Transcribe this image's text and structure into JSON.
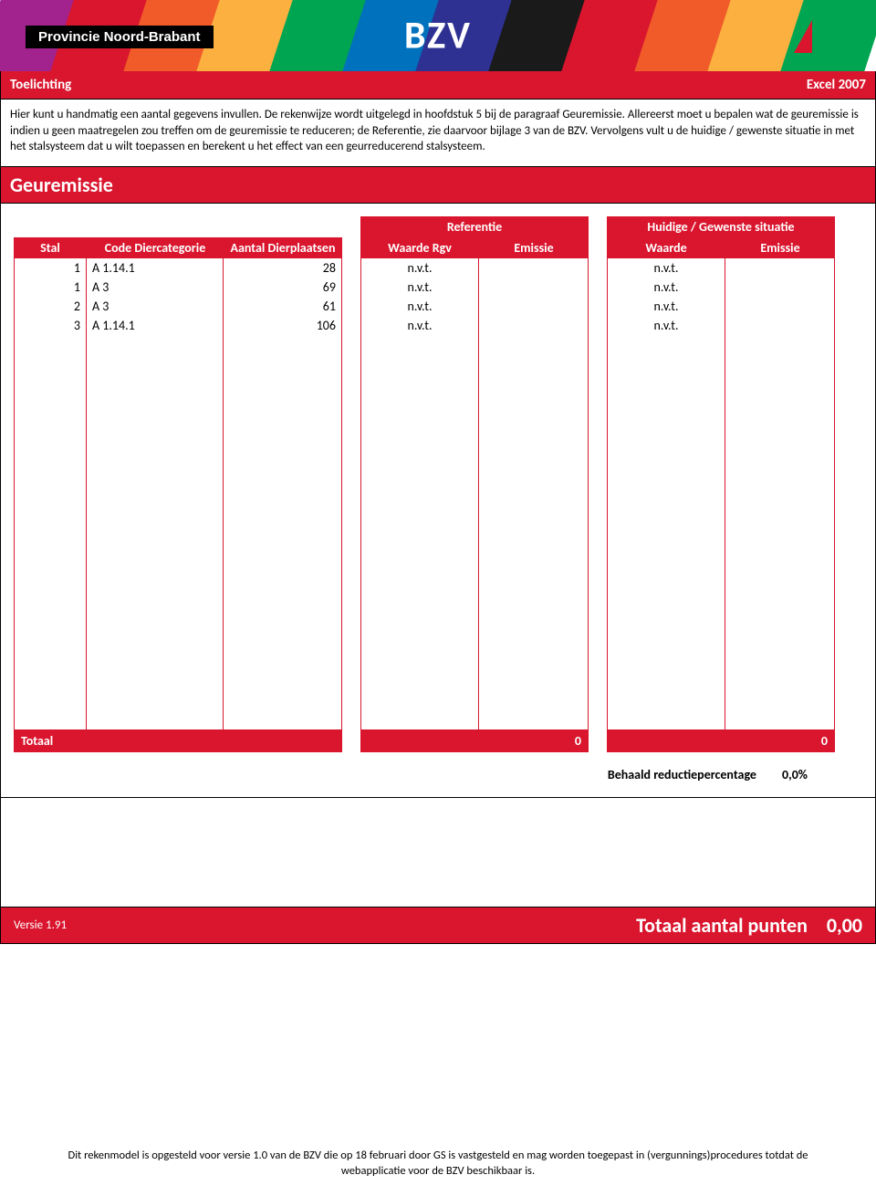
{
  "banner": {
    "province_label": "Provincie Noord-Brabant",
    "bzv": "BZV",
    "stripe_colors": [
      "#a2238e",
      "#d9162e",
      "#f15a29",
      "#fbb040",
      "#00a551",
      "#0071bc",
      "#2e3192",
      "#1a1a1a",
      "#d9162e",
      "#f15a29",
      "#fbb040",
      "#00a551"
    ],
    "label_bg": "#000000",
    "label_fg": "#ffffff"
  },
  "toelichting": {
    "title_left": "Toelichting",
    "title_right": "Excel 2007",
    "body": "Hier kunt u handmatig een aantal gegevens invullen. De rekenwijze wordt uitgelegd in hoofdstuk 5 bij de paragraaf Geuremissie. Allereerst moet u bepalen wat de geuremissie is indien u geen maatregelen zou treffen om de geuremissie te reduceren; de Referentie, zie daarvoor bijlage 3 van de BZV. Vervolgens vult u de huidige / gewenste situatie in met het stalsysteem dat u wilt toepassen en berekent u het effect van een geurreducerend  stalsysteem."
  },
  "section_title": "Geuremissie",
  "headers": {
    "stal": "Stal",
    "code": "Code Diercategorie",
    "aantal": "Aantal Dierplaatsen",
    "referentie": "Referentie",
    "waarde_rgv": "Waarde Rgv",
    "emissie": "Emissie",
    "huidige": "Huidige / Gewenste situatie",
    "waarde": "Waarde"
  },
  "rows": [
    {
      "stal": "1",
      "code": "A 1.14.1",
      "aantal": "28",
      "rgv": "n.v.t.",
      "ref_em": "",
      "waarde": "n.v.t.",
      "hg_em": ""
    },
    {
      "stal": "1",
      "code": "A 3",
      "aantal": "69",
      "rgv": "n.v.t.",
      "ref_em": "",
      "waarde": "n.v.t.",
      "hg_em": ""
    },
    {
      "stal": "2",
      "code": "A 3",
      "aantal": "61",
      "rgv": "n.v.t.",
      "ref_em": "",
      "waarde": "n.v.t.",
      "hg_em": ""
    },
    {
      "stal": "3",
      "code": "A 1.14.1",
      "aantal": "106",
      "rgv": "n.v.t.",
      "ref_em": "",
      "waarde": "n.v.t.",
      "hg_em": ""
    }
  ],
  "totaal": {
    "label": "Totaal",
    "ref_total": "0",
    "hg_total": "0"
  },
  "reduction": {
    "label": "Behaald reductiepercentage",
    "value": "0,0%"
  },
  "footer": {
    "version": "Versie 1.91",
    "total_label": "Totaal aantal punten",
    "total_value": "0,00"
  },
  "disclaimer": "Dit rekenmodel is opgesteld voor versie 1.0 van de BZV die op 18 februari door GS is vastgesteld en mag worden toegepast in (vergunnings)procedures totdat de webapplicatie voor de BZV beschikbaar is.",
  "colors": {
    "accent": "#d9162e",
    "text": "#000000",
    "white": "#ffffff"
  }
}
